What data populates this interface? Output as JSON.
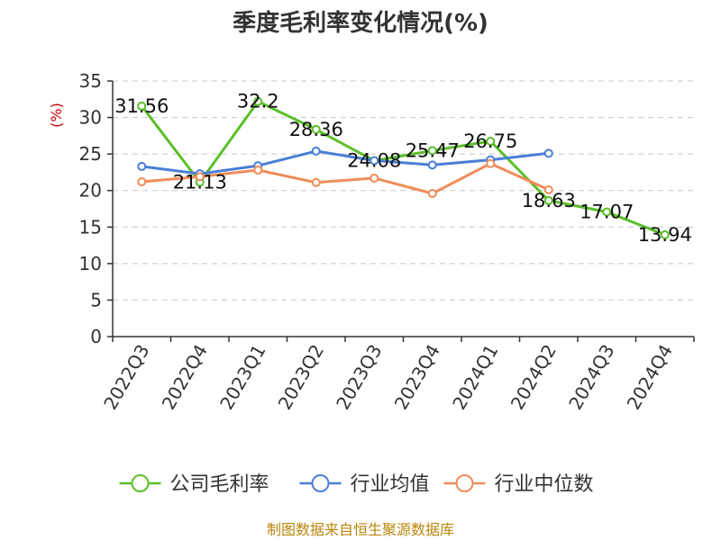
{
  "chart_data": {
    "type": "line",
    "title": "季度毛利率变化情况(%)",
    "ylabel": "(%)",
    "xlabel": "",
    "ylim": [
      0,
      35
    ],
    "yticks": [
      0,
      5,
      10,
      15,
      20,
      25,
      30,
      35
    ],
    "grid": true,
    "legend_position": "bottom",
    "categories": [
      "2022Q3",
      "2022Q4",
      "2023Q1",
      "2023Q2",
      "2023Q3",
      "2023Q4",
      "2024Q1",
      "2024Q2",
      "2024Q3",
      "2024Q4"
    ],
    "series": [
      {
        "name": "公司毛利率",
        "color": "#5bbf2a",
        "values": [
          31.56,
          21.13,
          32.2,
          28.36,
          24.08,
          25.47,
          26.75,
          18.63,
          17.07,
          13.94
        ],
        "labels": [
          "31.56",
          "21.13",
          "32.2",
          "28.36",
          "24.08",
          "25.47",
          "26.75",
          "18.63",
          "17.07",
          "13.94"
        ]
      },
      {
        "name": "行业均值",
        "color": "#4a7fd6",
        "values": [
          23.3,
          22.3,
          23.4,
          25.4,
          24.1,
          23.5,
          24.2,
          25.1,
          null,
          null
        ]
      },
      {
        "name": "行业中位数",
        "color": "#f08c5a",
        "values": [
          21.2,
          21.9,
          22.8,
          21.1,
          21.7,
          19.6,
          23.7,
          20.1,
          null,
          null
        ]
      }
    ]
  },
  "source": "制图数据来自恒生聚源数据库"
}
